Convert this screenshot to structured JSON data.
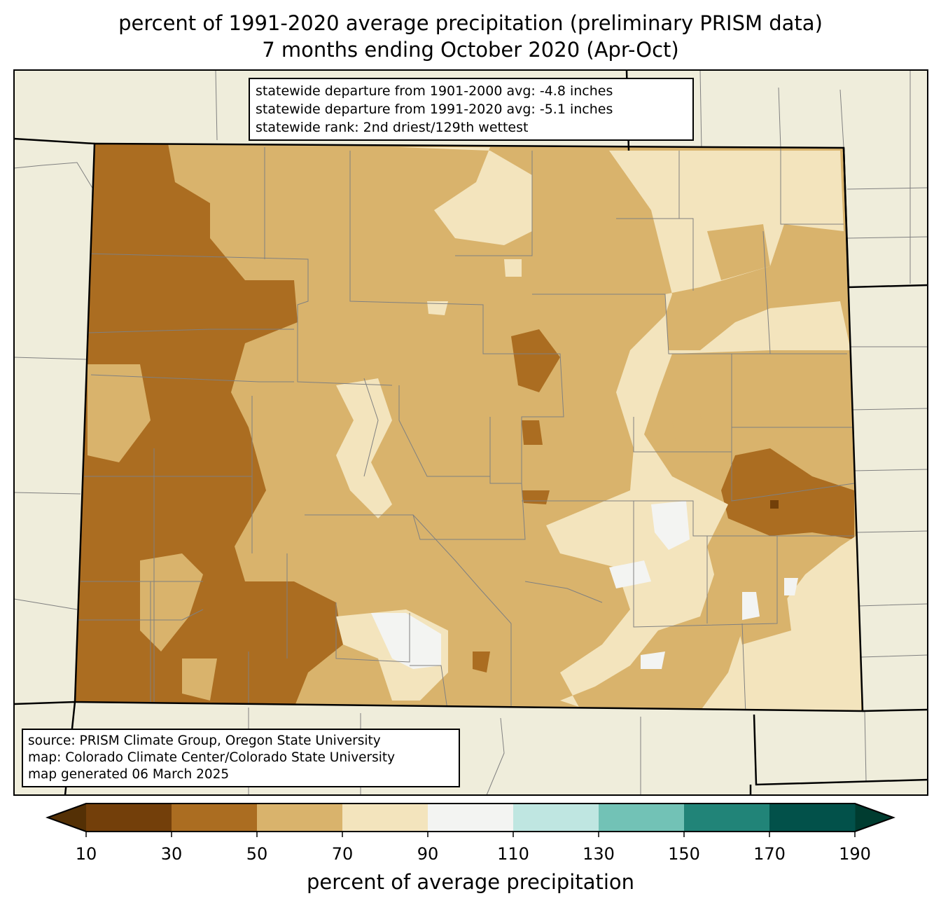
{
  "title": {
    "line1": "percent of 1991-2020 average precipitation (preliminary PRISM data)",
    "line2": "7 months ending October 2020 (Apr-Oct)"
  },
  "stats": {
    "line1": "statewide departure from 1901-2000 avg: -4.8 inches",
    "line2": "statewide departure from 1991-2020 avg: -5.1 inches",
    "line3": "statewide rank: 2nd driest/129th wettest"
  },
  "source": {
    "line1": "source: PRISM Climate Group, Oregon State University",
    "line2": "map: Colorado Climate Center/Colorado State University",
    "line3": "map generated 06 March 2025"
  },
  "colorbar": {
    "label": "percent of average precipitation",
    "ticks": [
      "10",
      "30",
      "50",
      "70",
      "90",
      "110",
      "130",
      "150",
      "170",
      "190"
    ],
    "colors": [
      "#733f0a",
      "#ab6d21",
      "#d9b36c",
      "#f3e4bd",
      "#f3f4f2",
      "#bfe6e1",
      "#72c2b6",
      "#218478",
      "#02514a"
    ],
    "under_color": "#543005",
    "over_color": "#003c30"
  },
  "map_colors": {
    "background": "#efeddb",
    "county_line": "#808080"
  }
}
